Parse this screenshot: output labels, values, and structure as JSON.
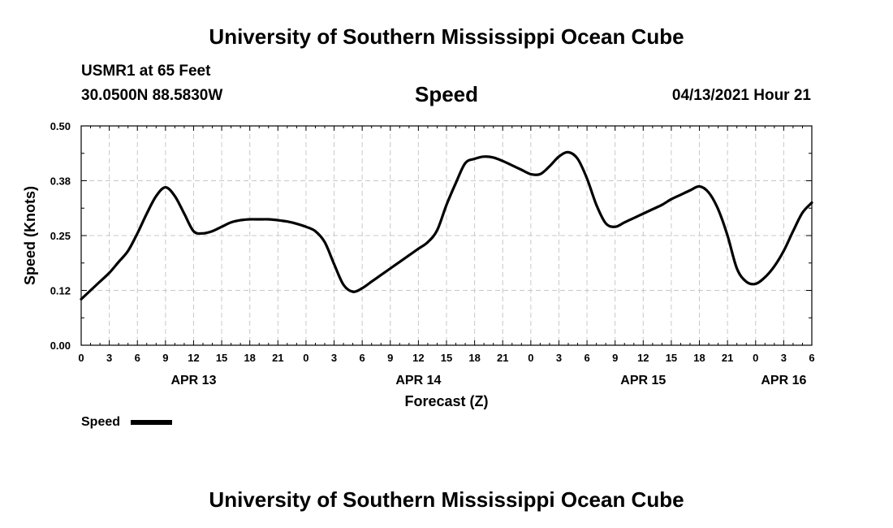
{
  "header": {
    "title": "University of Southern Mississippi Ocean Cube",
    "station": "USMR1 at 65 Feet",
    "coords": "30.0500N  88.5830W",
    "variable": "Speed",
    "datetime": "04/13/2021 Hour 21"
  },
  "footer": {
    "title": "University of Southern Mississippi Ocean Cube"
  },
  "legend": {
    "label": "Speed"
  },
  "chart_data": {
    "type": "line",
    "title": "Speed",
    "xlabel": "Forecast (Z)",
    "ylabel": "Speed (Knots)",
    "xlim": [
      0,
      78
    ],
    "ylim": [
      0,
      0.5
    ],
    "grid": true,
    "y_ticks": [
      "0.00",
      "0.12",
      "0.25",
      "0.38",
      "0.50"
    ],
    "y_tick_values": [
      0,
      0.125,
      0.25,
      0.375,
      0.5
    ],
    "x_ticks": [
      "0",
      "3",
      "6",
      "9",
      "12",
      "15",
      "18",
      "21",
      "0",
      "3",
      "6",
      "9",
      "12",
      "15",
      "18",
      "21",
      "0",
      "3",
      "6",
      "9",
      "12",
      "15",
      "18",
      "21",
      "0",
      "3",
      "6"
    ],
    "day_labels": [
      {
        "label": "APR 13",
        "hour": 12
      },
      {
        "label": "APR 14",
        "hour": 36
      },
      {
        "label": "APR 15",
        "hour": 60
      },
      {
        "label": "APR 16",
        "hour": 75
      }
    ],
    "series": [
      {
        "name": "Speed",
        "color": "#000000",
        "x": [
          0,
          1,
          2,
          3,
          4,
          5,
          6,
          7,
          8,
          9,
          10,
          11,
          12,
          13,
          14,
          15,
          16,
          17,
          18,
          19,
          20,
          21,
          22,
          23,
          24,
          25,
          26,
          27,
          28,
          29,
          30,
          31,
          32,
          33,
          34,
          35,
          36,
          37,
          38,
          39,
          40,
          41,
          42,
          43,
          44,
          45,
          46,
          47,
          48,
          49,
          50,
          51,
          52,
          53,
          54,
          55,
          56,
          57,
          58,
          59,
          60,
          61,
          62,
          63,
          64,
          65,
          66,
          67,
          68,
          69,
          70,
          71,
          72,
          73,
          74,
          75,
          76,
          77,
          78
        ],
        "values": [
          0.105,
          0.125,
          0.145,
          0.165,
          0.19,
          0.215,
          0.255,
          0.3,
          0.34,
          0.36,
          0.34,
          0.3,
          0.26,
          0.255,
          0.26,
          0.27,
          0.28,
          0.285,
          0.287,
          0.287,
          0.287,
          0.285,
          0.282,
          0.277,
          0.27,
          0.26,
          0.235,
          0.185,
          0.138,
          0.122,
          0.13,
          0.145,
          0.16,
          0.175,
          0.19,
          0.205,
          0.22,
          0.235,
          0.262,
          0.32,
          0.37,
          0.415,
          0.425,
          0.43,
          0.428,
          0.42,
          0.41,
          0.4,
          0.39,
          0.39,
          0.408,
          0.43,
          0.44,
          0.425,
          0.38,
          0.32,
          0.278,
          0.27,
          0.28,
          0.29,
          0.3,
          0.31,
          0.32,
          0.333,
          0.343,
          0.353,
          0.362,
          0.348,
          0.31,
          0.25,
          0.175,
          0.145,
          0.14,
          0.155,
          0.18,
          0.215,
          0.26,
          0.302,
          0.325
        ]
      }
    ]
  }
}
